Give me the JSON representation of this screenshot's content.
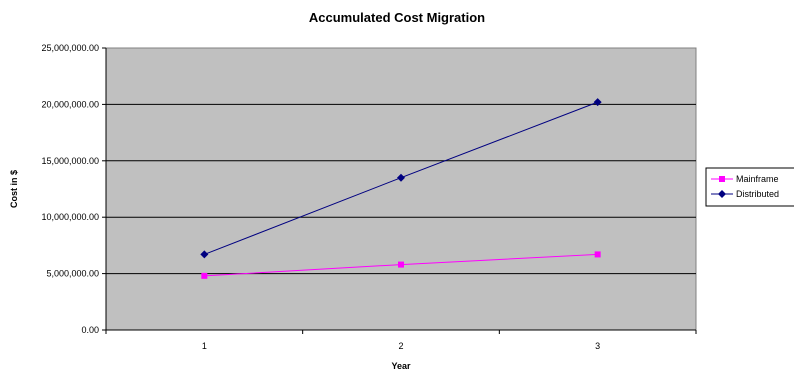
{
  "chart_data": {
    "type": "line",
    "title": "Accumulated Cost Migration",
    "xlabel": "Year",
    "ylabel": "Cost in $",
    "categories": [
      "1",
      "2",
      "3"
    ],
    "ylim": [
      0,
      25000000
    ],
    "yticks": [
      "0.00",
      "5,000,000.00",
      "10,000,000.00",
      "15,000,000.00",
      "20,000,000.00",
      "25,000,000.00"
    ],
    "grid": true,
    "legend_position": "right",
    "plot_background": "#c0c0c0",
    "series": [
      {
        "name": "Mainframe",
        "values": [
          4800000,
          5800000,
          6700000
        ],
        "color": "#ff00ff",
        "marker": "square"
      },
      {
        "name": "Distributed",
        "values": [
          6700000,
          13500000,
          20200000
        ],
        "color": "#000080",
        "marker": "diamond"
      }
    ]
  }
}
